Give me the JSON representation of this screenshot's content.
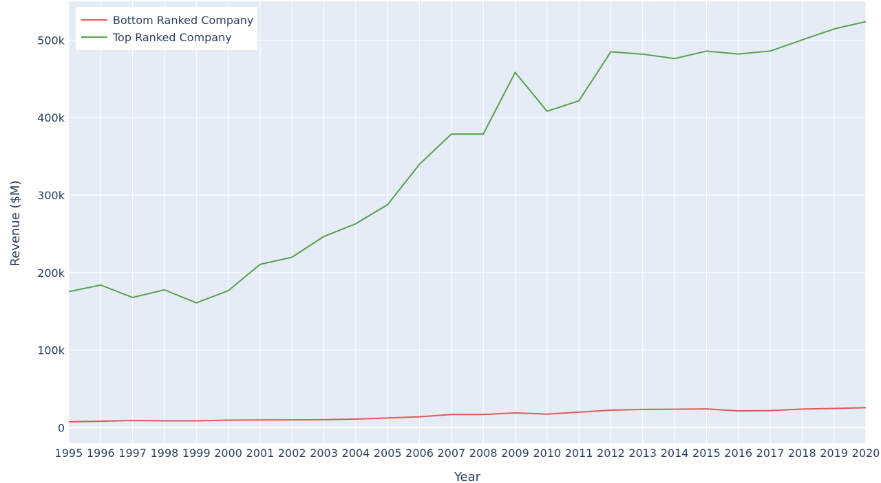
{
  "chart_data": {
    "type": "line",
    "title": "",
    "xlabel": "Year",
    "ylabel": "Revenue ($M)",
    "x": [
      1995,
      1996,
      1997,
      1998,
      1999,
      2000,
      2001,
      2002,
      2003,
      2004,
      2005,
      2006,
      2007,
      2008,
      2009,
      2010,
      2011,
      2012,
      2013,
      2014,
      2015,
      2016,
      2017,
      2018,
      2019,
      2020
    ],
    "xlim": [
      1995,
      2020
    ],
    "ylim": [
      -20000,
      550000
    ],
    "yticks": [
      0,
      100000,
      200000,
      300000,
      400000,
      500000
    ],
    "ytick_labels": [
      "0",
      "100k",
      "200k",
      "300k",
      "400k",
      "500k"
    ],
    "grid": true,
    "legend_position": "top-left",
    "series": [
      {
        "name": "Bottom Ranked Company",
        "color": "#e45756",
        "values": [
          7500,
          8300,
          9200,
          8800,
          8800,
          9700,
          9900,
          10000,
          10300,
          11000,
          12500,
          14000,
          17000,
          17000,
          19000,
          17500,
          20000,
          22500,
          23500,
          23800,
          24200,
          21500,
          22000,
          24000,
          24800,
          25800
        ]
      },
      {
        "name": "Top Ranked Company",
        "color": "#54a24b",
        "values": [
          175500,
          184000,
          168000,
          177800,
          161000,
          176700,
          210700,
          219900,
          246700,
          263100,
          287800,
          339900,
          378800,
          378800,
          458400,
          408200,
          421700,
          484900,
          481900,
          476200,
          485800,
          482100,
          485900,
          500300,
          514400,
          523900
        ]
      }
    ]
  }
}
